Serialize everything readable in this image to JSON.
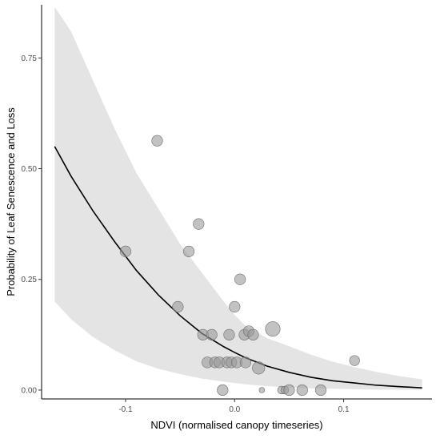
{
  "chart_data": {
    "type": "scatter",
    "xlabel": "NDVI (normalised canopy timeseries)",
    "ylabel": "Probability of Leaf Senescence and Loss",
    "xlim": [
      -0.177,
      0.181
    ],
    "ylim": [
      -0.02,
      0.87
    ],
    "x_ticks": [
      -0.1,
      0.0,
      0.1
    ],
    "x_tick_labels": [
      "-0.1",
      "0.0",
      "0.1"
    ],
    "y_ticks": [
      0.0,
      0.25,
      0.5,
      0.75
    ],
    "y_tick_labels": [
      "0.00",
      "0.25",
      "0.50",
      "0.75"
    ],
    "grid": false,
    "legend": "none",
    "colors": {
      "band": "#e4e4e4",
      "line": "#000000",
      "points": "#9a9a9a"
    },
    "fit": {
      "x": [
        -0.165,
        -0.15,
        -0.13,
        -0.11,
        -0.09,
        -0.07,
        -0.05,
        -0.03,
        -0.01,
        0.0,
        0.01,
        0.03,
        0.05,
        0.07,
        0.09,
        0.11,
        0.13,
        0.15,
        0.172
      ],
      "y": [
        0.55,
        0.483,
        0.405,
        0.335,
        0.27,
        0.215,
        0.168,
        0.128,
        0.098,
        0.085,
        0.073,
        0.054,
        0.04,
        0.029,
        0.021,
        0.016,
        0.011,
        0.008,
        0.005
      ],
      "lower": [
        0.2,
        0.16,
        0.12,
        0.09,
        0.065,
        0.048,
        0.036,
        0.026,
        0.019,
        0.016,
        0.013,
        0.009,
        0.006,
        0.004,
        0.003,
        0.002,
        0.001,
        0.0008,
        0.0005
      ],
      "upper": [
        0.865,
        0.81,
        0.7,
        0.59,
        0.49,
        0.41,
        0.33,
        0.265,
        0.2,
        0.17,
        0.145,
        0.117,
        0.099,
        0.08,
        0.064,
        0.052,
        0.041,
        0.032,
        0.024
      ]
    },
    "points": [
      {
        "x": -0.071,
        "y": 0.563,
        "size": 1.0
      },
      {
        "x": -0.1,
        "y": 0.313,
        "size": 1.0
      },
      {
        "x": -0.033,
        "y": 0.375,
        "size": 1.0
      },
      {
        "x": -0.042,
        "y": 0.313,
        "size": 1.0
      },
      {
        "x": -0.052,
        "y": 0.188,
        "size": 1.0
      },
      {
        "x": 0.005,
        "y": 0.25,
        "size": 1.0
      },
      {
        "x": 0.0,
        "y": 0.188,
        "size": 1.0
      },
      {
        "x": -0.029,
        "y": 0.125,
        "size": 1.0
      },
      {
        "x": -0.021,
        "y": 0.125,
        "size": 1.0
      },
      {
        "x": -0.005,
        "y": 0.125,
        "size": 1.0
      },
      {
        "x": 0.009,
        "y": 0.125,
        "size": 1.0
      },
      {
        "x": 0.013,
        "y": 0.133,
        "size": 1.0
      },
      {
        "x": 0.017,
        "y": 0.125,
        "size": 1.0
      },
      {
        "x": 0.035,
        "y": 0.138,
        "size": 1.5
      },
      {
        "x": -0.025,
        "y": 0.0625,
        "size": 1.0
      },
      {
        "x": -0.018,
        "y": 0.0625,
        "size": 1.0
      },
      {
        "x": -0.014,
        "y": 0.0625,
        "size": 1.0
      },
      {
        "x": -0.007,
        "y": 0.0625,
        "size": 1.0
      },
      {
        "x": -0.003,
        "y": 0.0625,
        "size": 1.0
      },
      {
        "x": 0.002,
        "y": 0.0625,
        "size": 1.0
      },
      {
        "x": 0.01,
        "y": 0.0625,
        "size": 1.0
      },
      {
        "x": 0.022,
        "y": 0.05,
        "size": 1.2
      },
      {
        "x": 0.11,
        "y": 0.0667,
        "size": 0.9
      },
      {
        "x": -0.011,
        "y": 0.0,
        "size": 1.0
      },
      {
        "x": 0.025,
        "y": 0.0,
        "size": 0.3
      },
      {
        "x": 0.043,
        "y": 0.0,
        "size": 0.6
      },
      {
        "x": 0.046,
        "y": 0.0,
        "size": 0.6
      },
      {
        "x": 0.05,
        "y": 0.0,
        "size": 1.0
      },
      {
        "x": 0.062,
        "y": 0.0,
        "size": 1.0
      },
      {
        "x": 0.079,
        "y": 0.0,
        "size": 1.0
      }
    ]
  }
}
